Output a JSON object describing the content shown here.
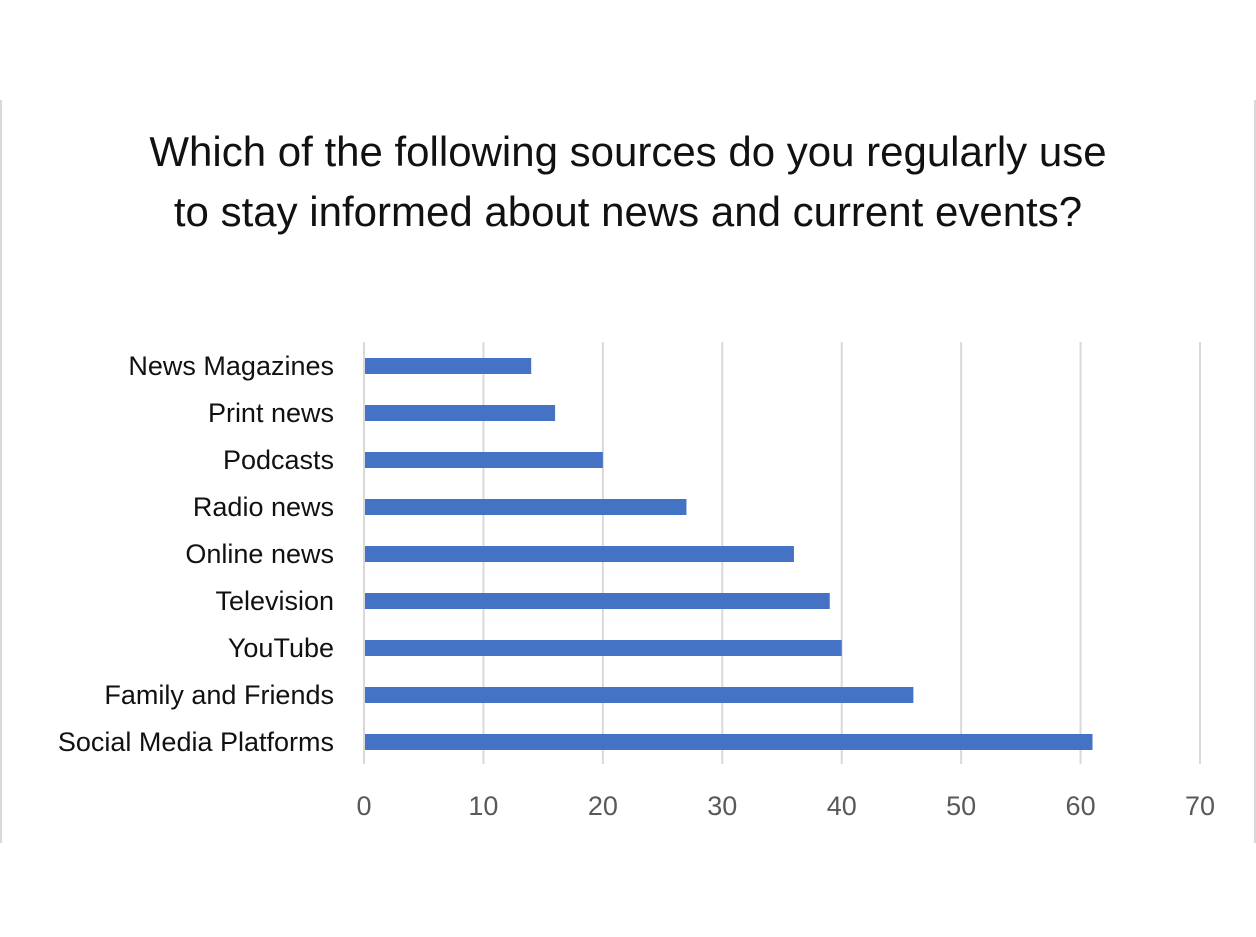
{
  "chart_data": {
    "type": "bar",
    "orientation": "horizontal",
    "title": "Which of the following sources do you regularly use to stay informed about news and current events?",
    "categories": [
      "News Magazines",
      "Print news",
      "Podcasts",
      "Radio news",
      "Online news",
      "Television",
      "YouTube",
      "Family and Friends",
      "Social Media Platforms"
    ],
    "values": [
      14,
      16,
      20,
      27,
      36,
      39,
      40,
      46,
      61
    ],
    "xlim": [
      0,
      70
    ],
    "xticks": [
      "0",
      "10",
      "20",
      "30",
      "40",
      "50",
      "60",
      "70"
    ],
    "xlabel": "",
    "ylabel": "",
    "grid": "vertical",
    "legend": "none",
    "bar_color": "#4472c4"
  }
}
